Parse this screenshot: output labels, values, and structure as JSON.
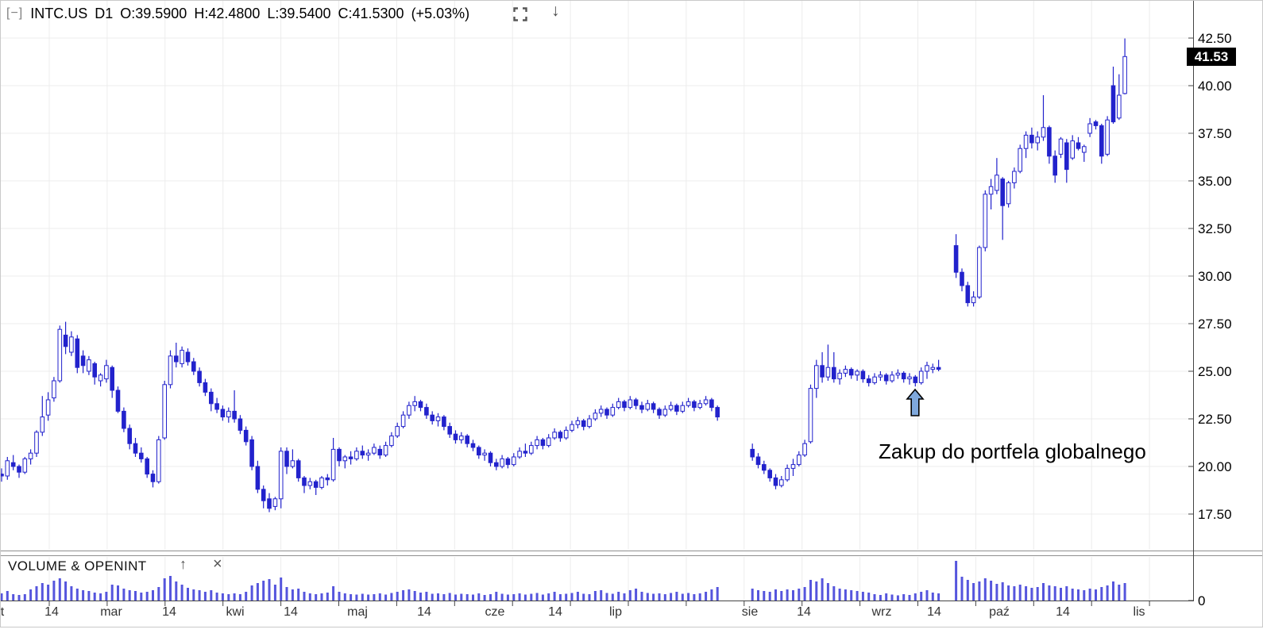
{
  "header": {
    "collapse_icon": "[−]",
    "symbol": "INTC.US",
    "timeframe": "D1",
    "open": "O:39.5900",
    "high": "H:42.4800",
    "low": "L:39.5400",
    "close": "C:41.5300",
    "change": "(+5.03%)",
    "download_icon": "↓"
  },
  "price_axis": {
    "last_price_tag": "41.53"
  },
  "volume_panel": {
    "title": "VOLUME & OPENINT",
    "up_icon": "↑",
    "close_icon": "×",
    "zero_label": "0"
  },
  "annotation": {
    "text": "Zakup do portfela globalnego"
  },
  "colors": {
    "candle": "#2222cc",
    "volume": "#5555dd",
    "grid": "#ececec",
    "axis": "#444444",
    "frame": "#c9c9c9",
    "splitter": "#8f8f8f",
    "tag_bg": "#000000",
    "tag_text": "#ffffff",
    "arrow_fill": "#7fa8dc",
    "arrow_stroke": "#000000"
  },
  "chart_data": {
    "type": "candlestick",
    "symbol": "INTC.US",
    "interval": "D1",
    "title": "INTC.US D1 O:39.5900 H:42.4800 L:39.5400 C:41.5300 (+5.03%)",
    "last_price": 41.53,
    "change_pct": 5.03,
    "ylim": [
      17.5,
      42.5
    ],
    "grid": true,
    "price_ticks": [
      {
        "price": 42.5,
        "label": "42.50"
      },
      {
        "price": 40.0,
        "label": "40.00"
      },
      {
        "price": 37.5,
        "label": "37.50"
      },
      {
        "price": 35.0,
        "label": "35.00"
      },
      {
        "price": 32.5,
        "label": "32.50"
      },
      {
        "price": 30.0,
        "label": "30.00"
      },
      {
        "price": 27.5,
        "label": "27.50"
      },
      {
        "price": 25.0,
        "label": "25.00"
      },
      {
        "price": 22.5,
        "label": "22.50"
      },
      {
        "price": 20.0,
        "label": "20.00"
      },
      {
        "price": 17.5,
        "label": "17.50"
      }
    ],
    "time_labels": [
      {
        "text": "t",
        "x": 3
      },
      {
        "text": "14",
        "x": 65
      },
      {
        "text": "mar",
        "x": 140
      },
      {
        "text": "14",
        "x": 213
      },
      {
        "text": "kwi",
        "x": 296
      },
      {
        "text": "14",
        "x": 366
      },
      {
        "text": "maj",
        "x": 450
      },
      {
        "text": "14",
        "x": 534
      },
      {
        "text": "cze",
        "x": 623
      },
      {
        "text": "14",
        "x": 699
      },
      {
        "text": "lip",
        "x": 775
      },
      {
        "text": "sie",
        "x": 944
      },
      {
        "text": "14",
        "x": 1012
      },
      {
        "text": "wrz",
        "x": 1110
      },
      {
        "text": "14",
        "x": 1176
      },
      {
        "text": "paź",
        "x": 1258
      },
      {
        "text": "14",
        "x": 1338
      },
      {
        "text": "lis",
        "x": 1434
      }
    ],
    "annotation": {
      "text": "Zakup do portfela globalnego",
      "arrow_price": 24.0
    },
    "ohlc": [
      [
        19.6,
        19.9,
        19.2,
        19.5
      ],
      [
        19.5,
        20.5,
        19.3,
        20.3
      ],
      [
        20.2,
        20.6,
        19.8,
        20.0
      ],
      [
        20.0,
        20.1,
        19.4,
        19.7
      ],
      [
        19.7,
        20.5,
        19.6,
        20.4
      ],
      [
        20.4,
        20.9,
        20.1,
        20.7
      ],
      [
        20.7,
        21.9,
        20.5,
        21.8
      ],
      [
        21.8,
        23.7,
        21.6,
        22.6
      ],
      [
        22.7,
        23.9,
        22.4,
        23.5
      ],
      [
        23.6,
        24.7,
        23.4,
        24.5
      ],
      [
        24.5,
        27.4,
        24.4,
        27.2
      ],
      [
        26.9,
        27.6,
        25.9,
        26.3
      ],
      [
        26.0,
        27.1,
        25.8,
        26.8
      ],
      [
        26.7,
        26.9,
        24.9,
        25.2
      ],
      [
        25.8,
        26.1,
        24.9,
        25.3
      ],
      [
        25.0,
        25.8,
        24.8,
        25.6
      ],
      [
        25.4,
        25.5,
        24.3,
        24.7
      ],
      [
        24.5,
        24.9,
        24.2,
        24.8
      ],
      [
        24.6,
        25.6,
        24.4,
        25.3
      ],
      [
        25.2,
        25.3,
        23.6,
        24.0
      ],
      [
        24.0,
        24.2,
        22.8,
        22.9
      ],
      [
        22.9,
        23.1,
        21.8,
        22.0
      ],
      [
        22.0,
        22.2,
        20.9,
        21.2
      ],
      [
        21.2,
        21.5,
        20.5,
        20.7
      ],
      [
        20.7,
        21.0,
        20.2,
        20.4
      ],
      [
        20.4,
        20.5,
        19.4,
        19.6
      ],
      [
        19.6,
        19.8,
        18.9,
        19.2
      ],
      [
        19.2,
        21.6,
        19.1,
        21.4
      ],
      [
        21.5,
        24.5,
        21.4,
        24.3
      ],
      [
        24.3,
        26.1,
        24.1,
        25.8
      ],
      [
        25.8,
        26.5,
        25.2,
        25.5
      ],
      [
        25.4,
        26.3,
        25.2,
        26.1
      ],
      [
        26.0,
        26.2,
        25.3,
        25.5
      ],
      [
        25.5,
        25.7,
        24.8,
        25.0
      ],
      [
        25.0,
        25.2,
        24.2,
        24.4
      ],
      [
        24.4,
        24.6,
        23.7,
        23.9
      ],
      [
        23.9,
        24.1,
        22.9,
        23.3
      ],
      [
        23.3,
        23.6,
        22.8,
        23.0
      ],
      [
        23.0,
        23.2,
        22.4,
        22.6
      ],
      [
        22.6,
        23.1,
        22.3,
        22.9
      ],
      [
        22.9,
        24.0,
        22.3,
        22.5
      ],
      [
        22.5,
        22.7,
        21.7,
        21.9
      ],
      [
        21.9,
        22.1,
        21.1,
        21.3
      ],
      [
        21.4,
        21.6,
        19.8,
        20.0
      ],
      [
        20.0,
        20.3,
        18.6,
        18.8
      ],
      [
        18.8,
        19.0,
        17.8,
        18.2
      ],
      [
        18.3,
        18.6,
        17.6,
        17.8
      ],
      [
        17.9,
        18.4,
        17.7,
        18.3
      ],
      [
        18.3,
        21.0,
        17.8,
        20.8
      ],
      [
        20.8,
        21.0,
        19.6,
        20.0
      ],
      [
        20.0,
        20.9,
        19.9,
        20.3
      ],
      [
        20.3,
        20.4,
        19.2,
        19.4
      ],
      [
        19.4,
        19.5,
        18.6,
        19.0
      ],
      [
        19.0,
        19.4,
        18.8,
        19.2
      ],
      [
        19.2,
        19.3,
        18.5,
        18.9
      ],
      [
        18.9,
        19.5,
        18.8,
        19.4
      ],
      [
        19.4,
        19.6,
        19.0,
        19.3
      ],
      [
        19.3,
        21.5,
        19.2,
        20.9
      ],
      [
        20.9,
        21.0,
        20.0,
        20.3
      ],
      [
        20.3,
        20.6,
        19.9,
        20.5
      ],
      [
        20.5,
        20.8,
        20.1,
        20.4
      ],
      [
        20.4,
        21.0,
        20.3,
        20.8
      ],
      [
        20.8,
        21.1,
        20.4,
        20.6
      ],
      [
        20.6,
        20.9,
        20.3,
        20.7
      ],
      [
        20.7,
        21.2,
        20.6,
        21.0
      ],
      [
        20.9,
        21.1,
        20.4,
        20.6
      ],
      [
        20.6,
        21.3,
        20.5,
        21.1
      ],
      [
        21.1,
        21.8,
        21.0,
        21.6
      ],
      [
        21.6,
        22.3,
        21.5,
        22.1
      ],
      [
        22.1,
        22.9,
        22.0,
        22.7
      ],
      [
        22.7,
        23.4,
        22.5,
        23.2
      ],
      [
        23.2,
        23.7,
        22.9,
        23.4
      ],
      [
        23.4,
        23.5,
        22.9,
        23.1
      ],
      [
        23.1,
        23.3,
        22.5,
        22.7
      ],
      [
        22.7,
        22.9,
        22.2,
        22.4
      ],
      [
        22.4,
        22.8,
        22.1,
        22.6
      ],
      [
        22.6,
        22.7,
        21.9,
        22.1
      ],
      [
        22.1,
        22.3,
        21.5,
        21.7
      ],
      [
        21.7,
        21.9,
        21.2,
        21.4
      ],
      [
        21.4,
        21.8,
        21.2,
        21.6
      ],
      [
        21.6,
        21.7,
        21.0,
        21.2
      ],
      [
        21.2,
        21.4,
        20.8,
        21.0
      ],
      [
        21.0,
        21.1,
        20.4,
        20.6
      ],
      [
        20.6,
        20.9,
        20.3,
        20.7
      ],
      [
        20.7,
        20.8,
        20.0,
        20.2
      ],
      [
        20.2,
        20.4,
        19.8,
        20.0
      ],
      [
        20.0,
        20.6,
        19.9,
        20.4
      ],
      [
        20.4,
        20.5,
        19.9,
        20.1
      ],
      [
        20.1,
        20.7,
        20.0,
        20.5
      ],
      [
        20.5,
        21.0,
        20.4,
        20.8
      ],
      [
        20.8,
        21.2,
        20.5,
        20.7
      ],
      [
        20.7,
        21.3,
        20.6,
        21.1
      ],
      [
        21.1,
        21.6,
        20.9,
        21.4
      ],
      [
        21.4,
        21.5,
        20.9,
        21.1
      ],
      [
        21.1,
        21.7,
        21.0,
        21.5
      ],
      [
        21.5,
        22.0,
        21.4,
        21.8
      ],
      [
        21.8,
        21.9,
        21.3,
        21.5
      ],
      [
        21.5,
        22.1,
        21.4,
        21.9
      ],
      [
        21.9,
        22.4,
        21.8,
        22.2
      ],
      [
        22.2,
        22.6,
        22.0,
        22.4
      ],
      [
        22.4,
        22.5,
        21.9,
        22.1
      ],
      [
        22.1,
        22.7,
        22.0,
        22.5
      ],
      [
        22.5,
        23.0,
        22.4,
        22.8
      ],
      [
        22.8,
        23.2,
        22.6,
        23.0
      ],
      [
        23.0,
        23.1,
        22.5,
        22.7
      ],
      [
        22.7,
        23.3,
        22.6,
        23.1
      ],
      [
        23.1,
        23.6,
        23.0,
        23.4
      ],
      [
        23.4,
        23.5,
        22.9,
        23.1
      ],
      [
        23.1,
        23.7,
        23.0,
        23.5
      ],
      [
        23.5,
        23.6,
        23.0,
        23.2
      ],
      [
        23.2,
        23.4,
        22.8,
        23.0
      ],
      [
        23.0,
        23.5,
        22.9,
        23.3
      ],
      [
        23.3,
        23.4,
        22.8,
        23.0
      ],
      [
        23.0,
        23.1,
        22.5,
        22.7
      ],
      [
        22.7,
        23.2,
        22.6,
        23.0
      ],
      [
        23.0,
        23.4,
        22.9,
        23.2
      ],
      [
        23.2,
        23.3,
        22.7,
        22.9
      ],
      [
        22.9,
        23.4,
        22.8,
        23.2
      ],
      [
        23.2,
        23.6,
        23.1,
        23.4
      ],
      [
        23.4,
        23.5,
        22.9,
        23.1
      ],
      [
        23.1,
        23.5,
        23.0,
        23.3
      ],
      [
        23.3,
        23.7,
        23.2,
        23.5
      ],
      [
        23.5,
        23.6,
        22.9,
        23.1
      ],
      [
        23.1,
        23.2,
        22.4,
        22.6
      ],
      null,
      null,
      null,
      null,
      null,
      [
        20.9,
        21.2,
        20.3,
        20.5
      ],
      [
        20.5,
        20.7,
        19.9,
        20.1
      ],
      [
        20.1,
        20.3,
        19.6,
        19.8
      ],
      [
        19.8,
        19.9,
        19.2,
        19.4
      ],
      [
        19.4,
        19.6,
        18.8,
        19.0
      ],
      [
        19.0,
        19.5,
        18.9,
        19.3
      ],
      [
        19.3,
        20.1,
        19.2,
        19.9
      ],
      [
        19.9,
        20.4,
        19.5,
        20.1
      ],
      [
        20.1,
        20.8,
        20.0,
        20.6
      ],
      [
        20.6,
        21.4,
        20.5,
        21.2
      ],
      [
        21.3,
        24.3,
        21.2,
        24.1
      ],
      [
        24.1,
        25.6,
        23.6,
        25.3
      ],
      [
        25.3,
        26.0,
        24.4,
        24.7
      ],
      [
        24.7,
        26.4,
        24.5,
        25.2
      ],
      [
        25.2,
        26.0,
        24.4,
        24.6
      ],
      [
        24.6,
        25.1,
        24.3,
        24.9
      ],
      [
        24.9,
        25.3,
        24.7,
        25.1
      ],
      [
        25.1,
        25.2,
        24.6,
        24.8
      ],
      [
        24.8,
        25.1,
        24.5,
        25.0
      ],
      [
        25.0,
        25.1,
        24.4,
        24.6
      ],
      [
        24.6,
        24.8,
        24.2,
        24.4
      ],
      [
        24.4,
        24.9,
        24.3,
        24.7
      ],
      [
        24.7,
        25.0,
        24.5,
        24.8
      ],
      [
        24.8,
        24.9,
        24.3,
        24.5
      ],
      [
        24.5,
        25.0,
        24.4,
        24.8
      ],
      [
        24.8,
        25.1,
        24.6,
        24.9
      ],
      [
        24.9,
        25.0,
        24.4,
        24.6
      ],
      [
        24.6,
        24.9,
        24.3,
        24.7
      ],
      [
        24.7,
        24.8,
        24.2,
        24.4
      ],
      [
        24.4,
        25.2,
        24.3,
        25.0
      ],
      [
        25.0,
        25.5,
        24.6,
        25.3
      ],
      [
        25.1,
        25.4,
        24.9,
        25.2
      ],
      [
        25.2,
        25.6,
        25.0,
        25.1
      ],
      null,
      null,
      [
        31.6,
        32.2,
        29.9,
        30.2
      ],
      [
        30.2,
        30.4,
        29.2,
        29.5
      ],
      [
        29.5,
        29.7,
        28.4,
        28.6
      ],
      [
        28.6,
        29.2,
        28.4,
        28.9
      ],
      [
        28.9,
        31.6,
        28.8,
        31.5
      ],
      [
        31.5,
        34.5,
        31.3,
        34.3
      ],
      [
        34.3,
        35.1,
        33.5,
        34.7
      ],
      [
        34.5,
        36.2,
        34.3,
        35.3
      ],
      [
        35.1,
        35.2,
        31.9,
        33.7
      ],
      [
        33.8,
        35.0,
        33.6,
        34.9
      ],
      [
        34.9,
        35.7,
        34.6,
        35.5
      ],
      [
        35.5,
        36.9,
        35.4,
        36.7
      ],
      [
        36.7,
        37.6,
        36.2,
        37.4
      ],
      [
        37.4,
        37.8,
        36.7,
        37.0
      ],
      [
        37.0,
        37.6,
        36.6,
        37.3
      ],
      [
        37.3,
        39.5,
        37.1,
        37.8
      ],
      [
        37.8,
        37.9,
        35.9,
        36.3
      ],
      [
        36.3,
        36.6,
        34.9,
        35.3
      ],
      [
        36.4,
        37.3,
        36.2,
        37.2
      ],
      [
        37.0,
        37.2,
        34.9,
        35.6
      ],
      [
        36.2,
        37.4,
        36.1,
        37.1
      ],
      [
        37.0,
        37.3,
        36.6,
        36.7
      ],
      [
        36.5,
        36.9,
        36.0,
        36.8
      ],
      [
        37.5,
        38.3,
        37.3,
        38.0
      ],
      [
        38.1,
        38.2,
        37.7,
        37.9
      ],
      [
        37.9,
        38.0,
        35.9,
        36.3
      ],
      [
        36.4,
        38.4,
        36.3,
        38.2
      ],
      [
        40.0,
        41.0,
        38.0,
        38.1
      ],
      [
        38.3,
        40.6,
        38.2,
        39.5
      ],
      [
        39.59,
        42.48,
        39.54,
        41.53
      ]
    ],
    "volume": [
      18,
      24,
      16,
      14,
      16,
      28,
      36,
      44,
      40,
      50,
      56,
      48,
      36,
      30,
      26,
      24,
      20,
      18,
      22,
      40,
      38,
      30,
      26,
      24,
      20,
      22,
      26,
      34,
      56,
      62,
      48,
      40,
      32,
      28,
      26,
      22,
      26,
      20,
      18,
      16,
      18,
      16,
      22,
      38,
      44,
      50,
      54,
      40,
      58,
      34,
      28,
      30,
      22,
      18,
      16,
      18,
      20,
      36,
      22,
      18,
      16,
      15,
      17,
      15,
      16,
      18,
      15,
      19,
      22,
      26,
      28,
      24,
      20,
      22,
      17,
      18,
      16,
      19,
      15,
      17,
      16,
      15,
      18,
      14,
      16,
      22,
      17,
      15,
      16,
      18,
      15,
      17,
      19,
      15,
      18,
      22,
      16,
      17,
      19,
      22,
      17,
      16,
      24,
      26,
      19,
      17,
      22,
      18,
      26,
      30,
      22,
      19,
      17,
      18,
      16,
      19,
      22,
      17,
      19,
      16,
      18,
      22,
      28,
      34,
      null,
      null,
      null,
      null,
      null,
      30,
      26,
      24,
      22,
      28,
      24,
      28,
      26,
      30,
      34,
      52,
      48,
      56,
      44,
      36,
      30,
      28,
      26,
      24,
      22,
      20,
      16,
      14,
      18,
      15,
      13,
      16,
      14,
      18,
      22,
      26,
      20,
      18,
      null,
      null,
      100,
      60,
      52,
      44,
      48,
      56,
      50,
      42,
      46,
      38,
      36,
      40,
      36,
      32,
      34,
      44,
      38,
      36,
      32,
      36,
      30,
      28,
      26,
      30,
      28,
      34,
      38,
      48,
      40,
      44
    ]
  }
}
